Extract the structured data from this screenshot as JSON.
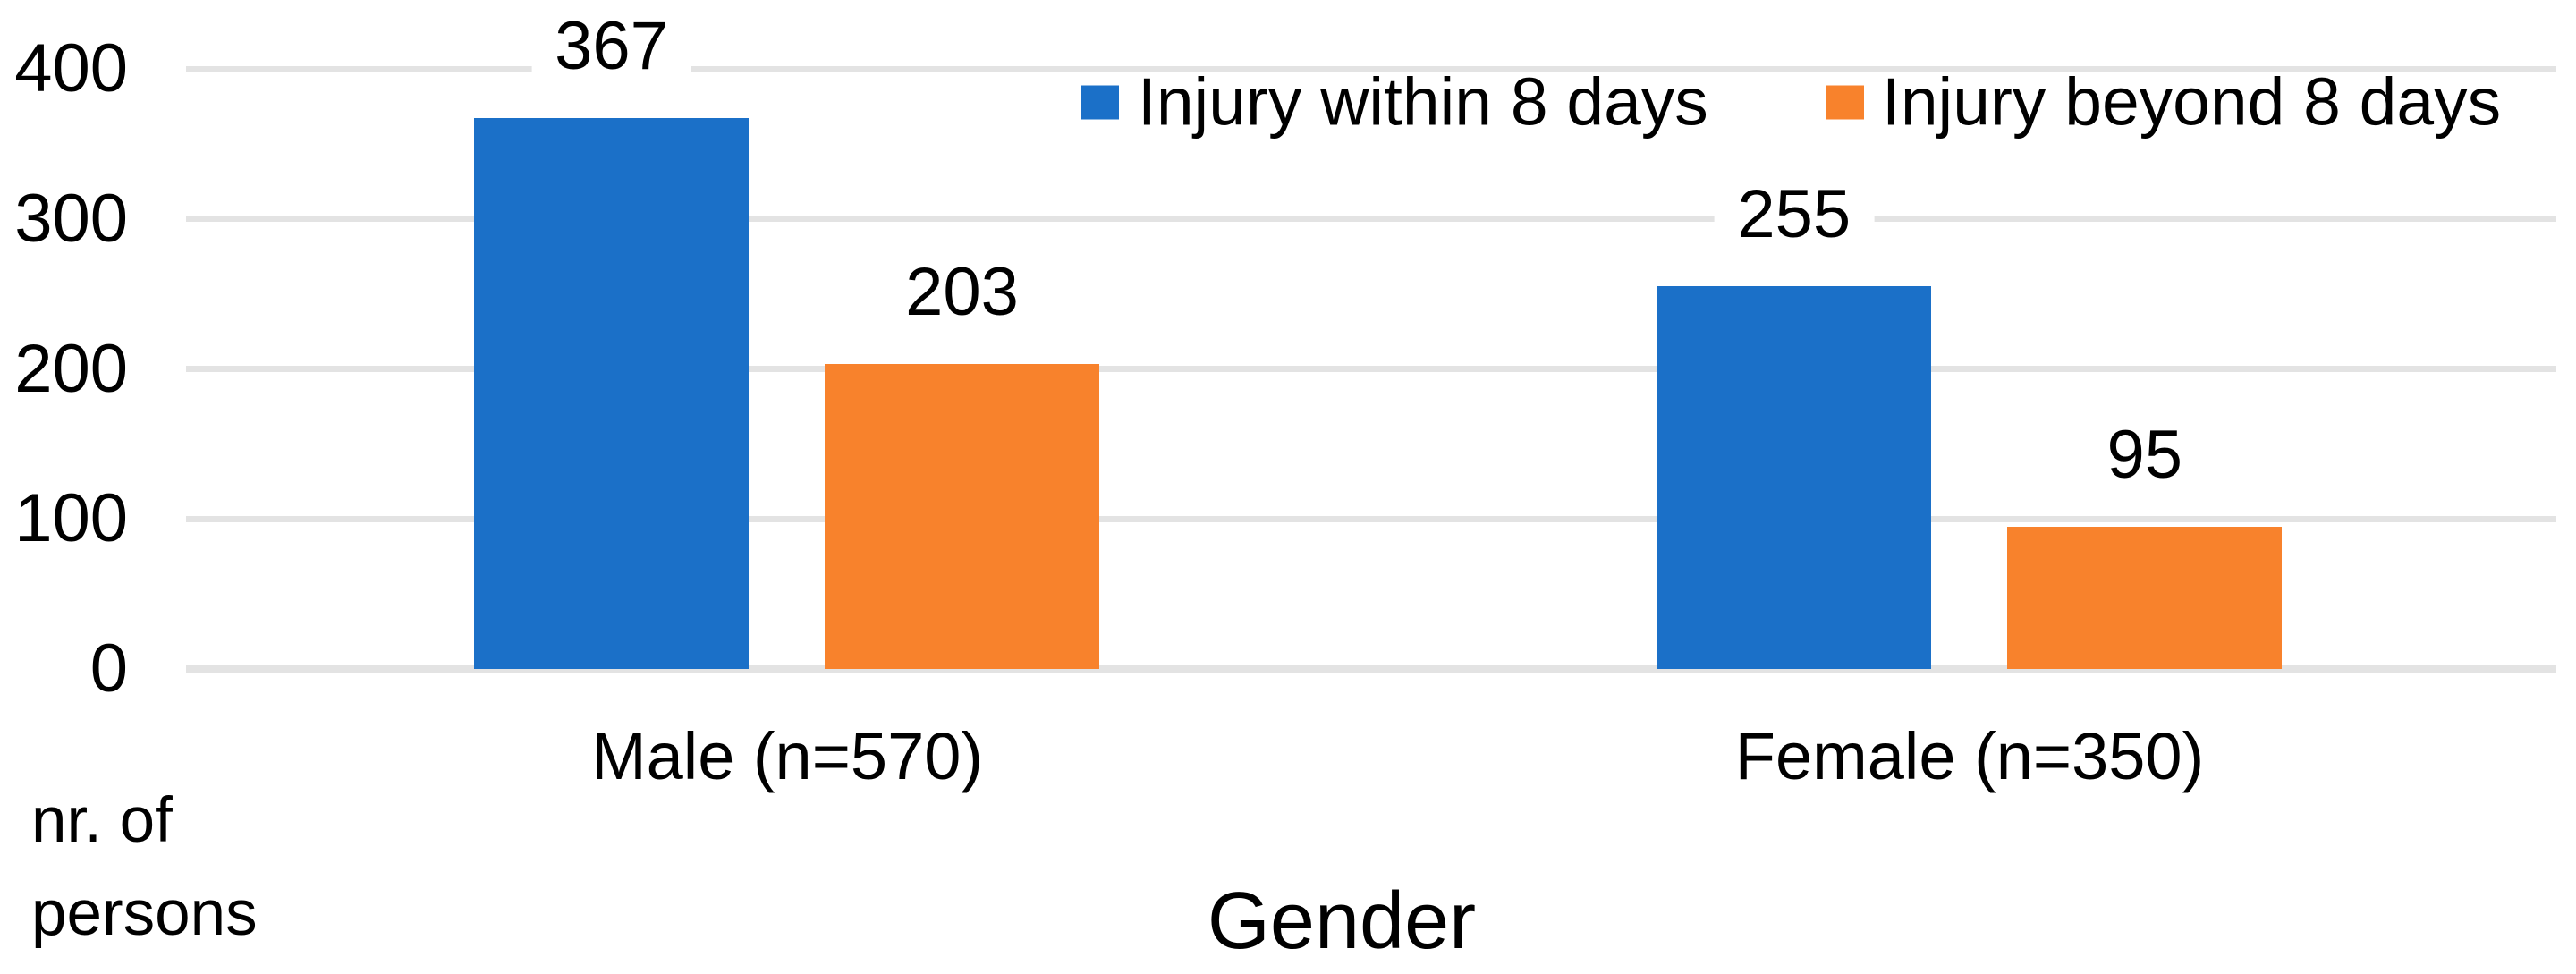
{
  "chart_data": {
    "type": "bar",
    "categories": [
      "Male (n=570)",
      "Female (n=350)"
    ],
    "series": [
      {
        "name": "Injury within 8 days",
        "color": "#1B70C8",
        "values": [
          367,
          255
        ]
      },
      {
        "name": "Injury beyond 8 days",
        "color": "#F8822C",
        "values": [
          203,
          95
        ]
      }
    ],
    "title": "",
    "xlabel": "Gender",
    "ylabel": "nr. of persons",
    "ylabel_lines": [
      "nr. of",
      "persons"
    ],
    "yticks": [
      0,
      100,
      200,
      300,
      400
    ],
    "ylim": [
      0,
      400
    ],
    "grid": "horizontal",
    "gridline_color": "#E3E3E3",
    "legend_position": "top",
    "data_labels": "outside-end",
    "data_label_values": [
      [
        367,
        203
      ],
      [
        255,
        95
      ]
    ]
  }
}
